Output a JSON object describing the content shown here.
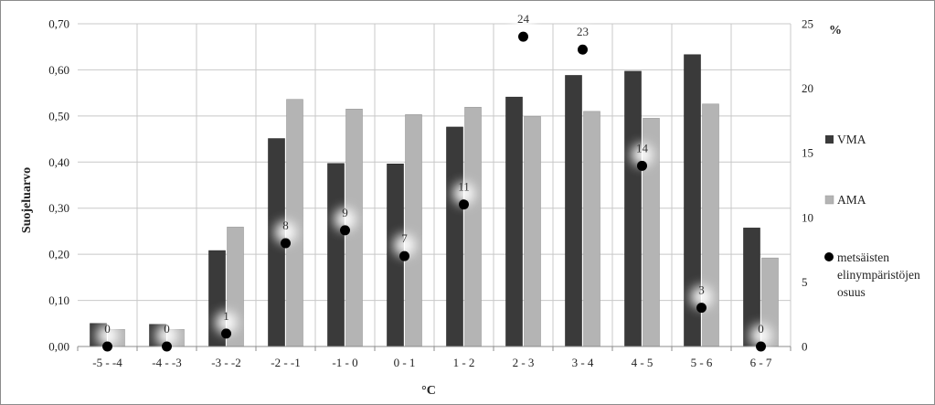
{
  "chart_data": {
    "type": "bar",
    "categories": [
      "-5 - -4",
      "-4 - -3",
      "-3 - -2",
      "-2 - -1",
      "-1 - 0",
      "0 - 1",
      "1 - 2",
      "2 - 3",
      "3 - 4",
      "4 - 5",
      "5 - 6",
      "6 - 7"
    ],
    "series": [
      {
        "name": "VMA",
        "axis": "left",
        "color": "#3a3a3a",
        "values": [
          0.05,
          0.048,
          0.208,
          0.451,
          0.397,
          0.396,
          0.476,
          0.541,
          0.588,
          0.597,
          0.633,
          0.257
        ]
      },
      {
        "name": "AMA",
        "axis": "left",
        "color": "#b4b4b4",
        "values": [
          0.037,
          0.037,
          0.259,
          0.536,
          0.515,
          0.503,
          0.519,
          0.499,
          0.51,
          0.495,
          0.526,
          0.192
        ]
      },
      {
        "name": "metsäisten elinympäristöjen osuus",
        "axis": "right",
        "type": "scatter",
        "color": "#000000",
        "values": [
          0,
          0,
          1,
          8,
          9,
          7,
          11,
          24,
          23,
          14,
          3,
          0
        ],
        "labels": [
          "0",
          "0",
          "1",
          "8",
          "9",
          "7",
          "11",
          "24",
          "23",
          "14",
          "3",
          "0"
        ]
      }
    ],
    "xlabel": "°C",
    "ylabel": "Suojeluarvo",
    "y2label": "%",
    "ylim": [
      0,
      0.7
    ],
    "y2lim": [
      0,
      25
    ],
    "yticks": [
      "0,00",
      "0,10",
      "0,20",
      "0,30",
      "0,40",
      "0,50",
      "0,60",
      "0,70"
    ],
    "y2ticks": [
      "0",
      "5",
      "10",
      "15",
      "20",
      "25"
    ],
    "grid": true,
    "legend_position": "right",
    "legend": {
      "vma": "VMA",
      "ama": "AMA",
      "share_line1": "metsäisten",
      "share_line2": "elinympäristöjen",
      "share_line3": "osuus"
    }
  }
}
